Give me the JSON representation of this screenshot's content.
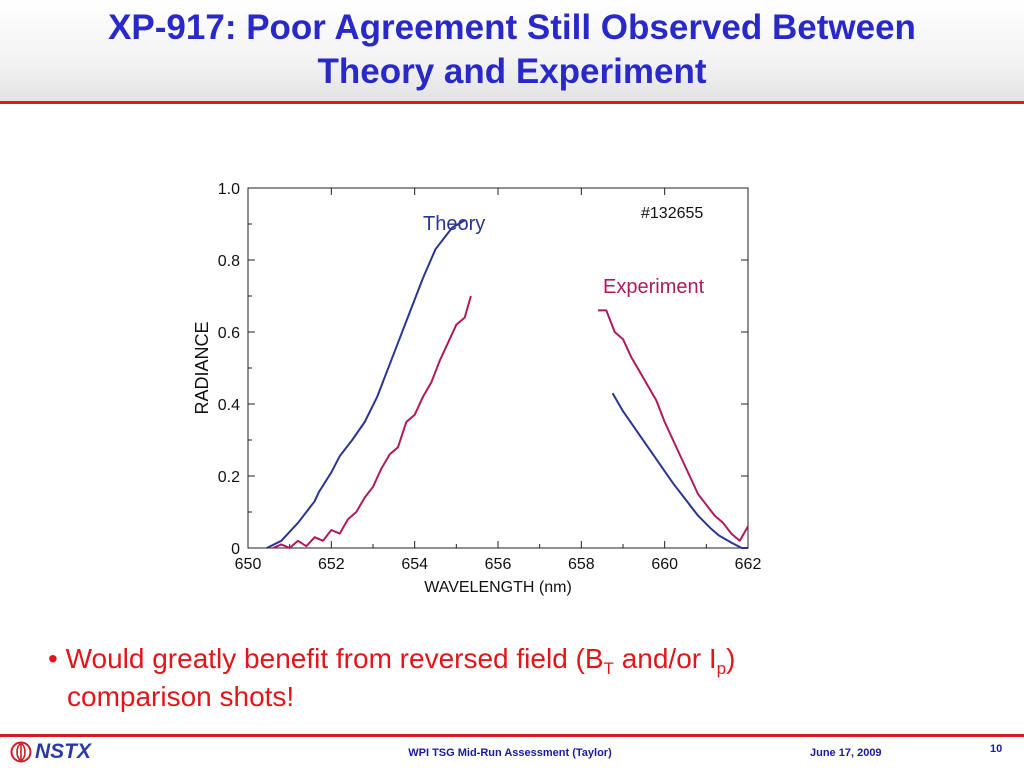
{
  "slide": {
    "title_line1": "XP-917: Poor Agreement Still Observed Between",
    "title_line2": "Theory and Experiment",
    "bullet": {
      "marker": "•",
      "p1": "Would greatly benefit from reversed field (B",
      "sub1": "T",
      "p2": " and/or I",
      "sub2": "p",
      "p3": ")",
      "line2": "comparison shots!"
    }
  },
  "footer": {
    "logo_text": "NSTX",
    "center": "WPI TSG Mid-Run Assessment (Taylor)",
    "date": "June 17, 2009",
    "page": "10"
  },
  "colors": {
    "title": "#2929c9",
    "accent_rule": "#d51d1d",
    "bullet": "#e2161a",
    "theory": "#2a3590",
    "experiment": "#ad1a5d"
  },
  "chart_data": {
    "type": "line",
    "xlabel": "WAVELENGTH (nm)",
    "ylabel": "RADIANCE",
    "xlim": [
      650,
      662
    ],
    "ylim": [
      0,
      1.0
    ],
    "xticks": [
      "650",
      "652",
      "654",
      "656",
      "658",
      "660",
      "662"
    ],
    "yticks": [
      "0",
      "0.2",
      "0.4",
      "0.6",
      "0.8",
      "1.0"
    ],
    "annotation": "#132655",
    "series": [
      {
        "name": "Theory",
        "segments": [
          [
            [
              650.45,
              0.0
            ],
            [
              650.8,
              0.02
            ],
            [
              651.2,
              0.07
            ],
            [
              651.6,
              0.13
            ],
            [
              651.7,
              0.155
            ],
            [
              652.0,
              0.21
            ],
            [
              652.2,
              0.255
            ],
            [
              652.5,
              0.3
            ],
            [
              652.8,
              0.35
            ],
            [
              653.1,
              0.42
            ],
            [
              653.3,
              0.48
            ],
            [
              653.6,
              0.57
            ],
            [
              653.9,
              0.66
            ],
            [
              654.2,
              0.75
            ],
            [
              654.5,
              0.83
            ],
            [
              654.9,
              0.89
            ],
            [
              655.2,
              0.91
            ]
          ],
          [
            [
              658.75,
              0.43
            ],
            [
              659.0,
              0.38
            ],
            [
              659.3,
              0.33
            ],
            [
              659.6,
              0.28
            ],
            [
              659.9,
              0.23
            ],
            [
              660.2,
              0.18
            ],
            [
              660.5,
              0.135
            ],
            [
              660.8,
              0.09
            ],
            [
              661.1,
              0.055
            ],
            [
              661.3,
              0.035
            ],
            [
              661.6,
              0.015
            ],
            [
              661.85,
              0.0
            ],
            [
              662.0,
              0.0
            ]
          ]
        ]
      },
      {
        "name": "Experiment",
        "segments": [
          [
            [
              650.6,
              0.0
            ],
            [
              650.8,
              0.01
            ],
            [
              651.0,
              0.0
            ],
            [
              651.2,
              0.02
            ],
            [
              651.4,
              0.005
            ],
            [
              651.6,
              0.03
            ],
            [
              651.8,
              0.02
            ],
            [
              652.0,
              0.05
            ],
            [
              652.2,
              0.04
            ],
            [
              652.4,
              0.08
            ],
            [
              652.6,
              0.1
            ],
            [
              652.8,
              0.14
            ],
            [
              653.0,
              0.17
            ],
            [
              653.2,
              0.22
            ],
            [
              653.4,
              0.26
            ],
            [
              653.6,
              0.28
            ],
            [
              653.8,
              0.35
            ],
            [
              654.0,
              0.37
            ],
            [
              654.2,
              0.42
            ],
            [
              654.4,
              0.46
            ],
            [
              654.6,
              0.52
            ],
            [
              654.8,
              0.57
            ],
            [
              655.0,
              0.62
            ],
            [
              655.2,
              0.64
            ],
            [
              655.35,
              0.7
            ]
          ],
          [
            [
              658.4,
              0.66
            ],
            [
              658.6,
              0.66
            ],
            [
              658.8,
              0.6
            ],
            [
              659.0,
              0.58
            ],
            [
              659.2,
              0.53
            ],
            [
              659.4,
              0.49
            ],
            [
              659.6,
              0.45
            ],
            [
              659.8,
              0.41
            ],
            [
              660.0,
              0.35
            ],
            [
              660.2,
              0.3
            ],
            [
              660.4,
              0.25
            ],
            [
              660.6,
              0.2
            ],
            [
              660.8,
              0.15
            ],
            [
              661.0,
              0.12
            ],
            [
              661.2,
              0.09
            ],
            [
              661.4,
              0.07
            ],
            [
              661.6,
              0.04
            ],
            [
              661.8,
              0.02
            ],
            [
              662.0,
              0.06
            ]
          ]
        ]
      }
    ]
  }
}
